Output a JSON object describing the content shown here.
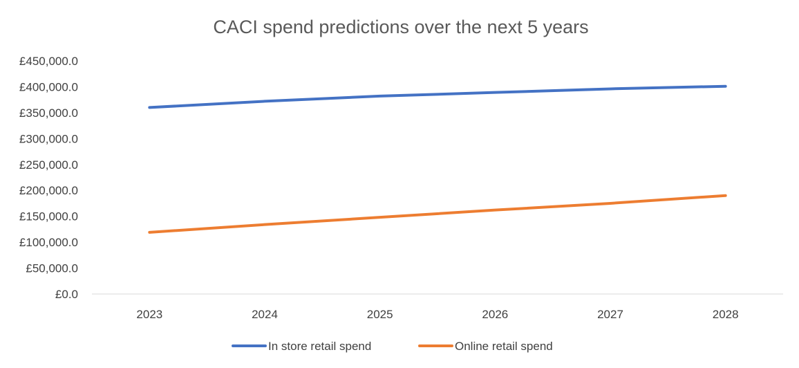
{
  "chart_data": {
    "type": "line",
    "title": "CACI spend predictions over the next 5 years",
    "xlabel": "",
    "ylabel": "",
    "categories": [
      "2023",
      "2024",
      "2025",
      "2026",
      "2027",
      "2028"
    ],
    "ylim": [
      0,
      450000
    ],
    "y_ticks": [
      0,
      50000,
      100000,
      150000,
      200000,
      250000,
      300000,
      350000,
      400000,
      450000
    ],
    "y_tick_labels": [
      "£0.0",
      "£50,000.0",
      "£100,000.0",
      "£150,000.0",
      "£200,000.0",
      "£250,000.0",
      "£300,000.0",
      "£350,000.0",
      "£400,000.0",
      "£450,000.0"
    ],
    "grid": false,
    "legend_position": "bottom",
    "series": [
      {
        "name": "In store retail spend",
        "color": "#4472C4",
        "values": [
          360000,
          372000,
          382000,
          389000,
          396000,
          401000
        ]
      },
      {
        "name": "Online retail spend",
        "color": "#ED7D31",
        "values": [
          119000,
          134000,
          148000,
          162000,
          175000,
          190000
        ]
      }
    ]
  }
}
